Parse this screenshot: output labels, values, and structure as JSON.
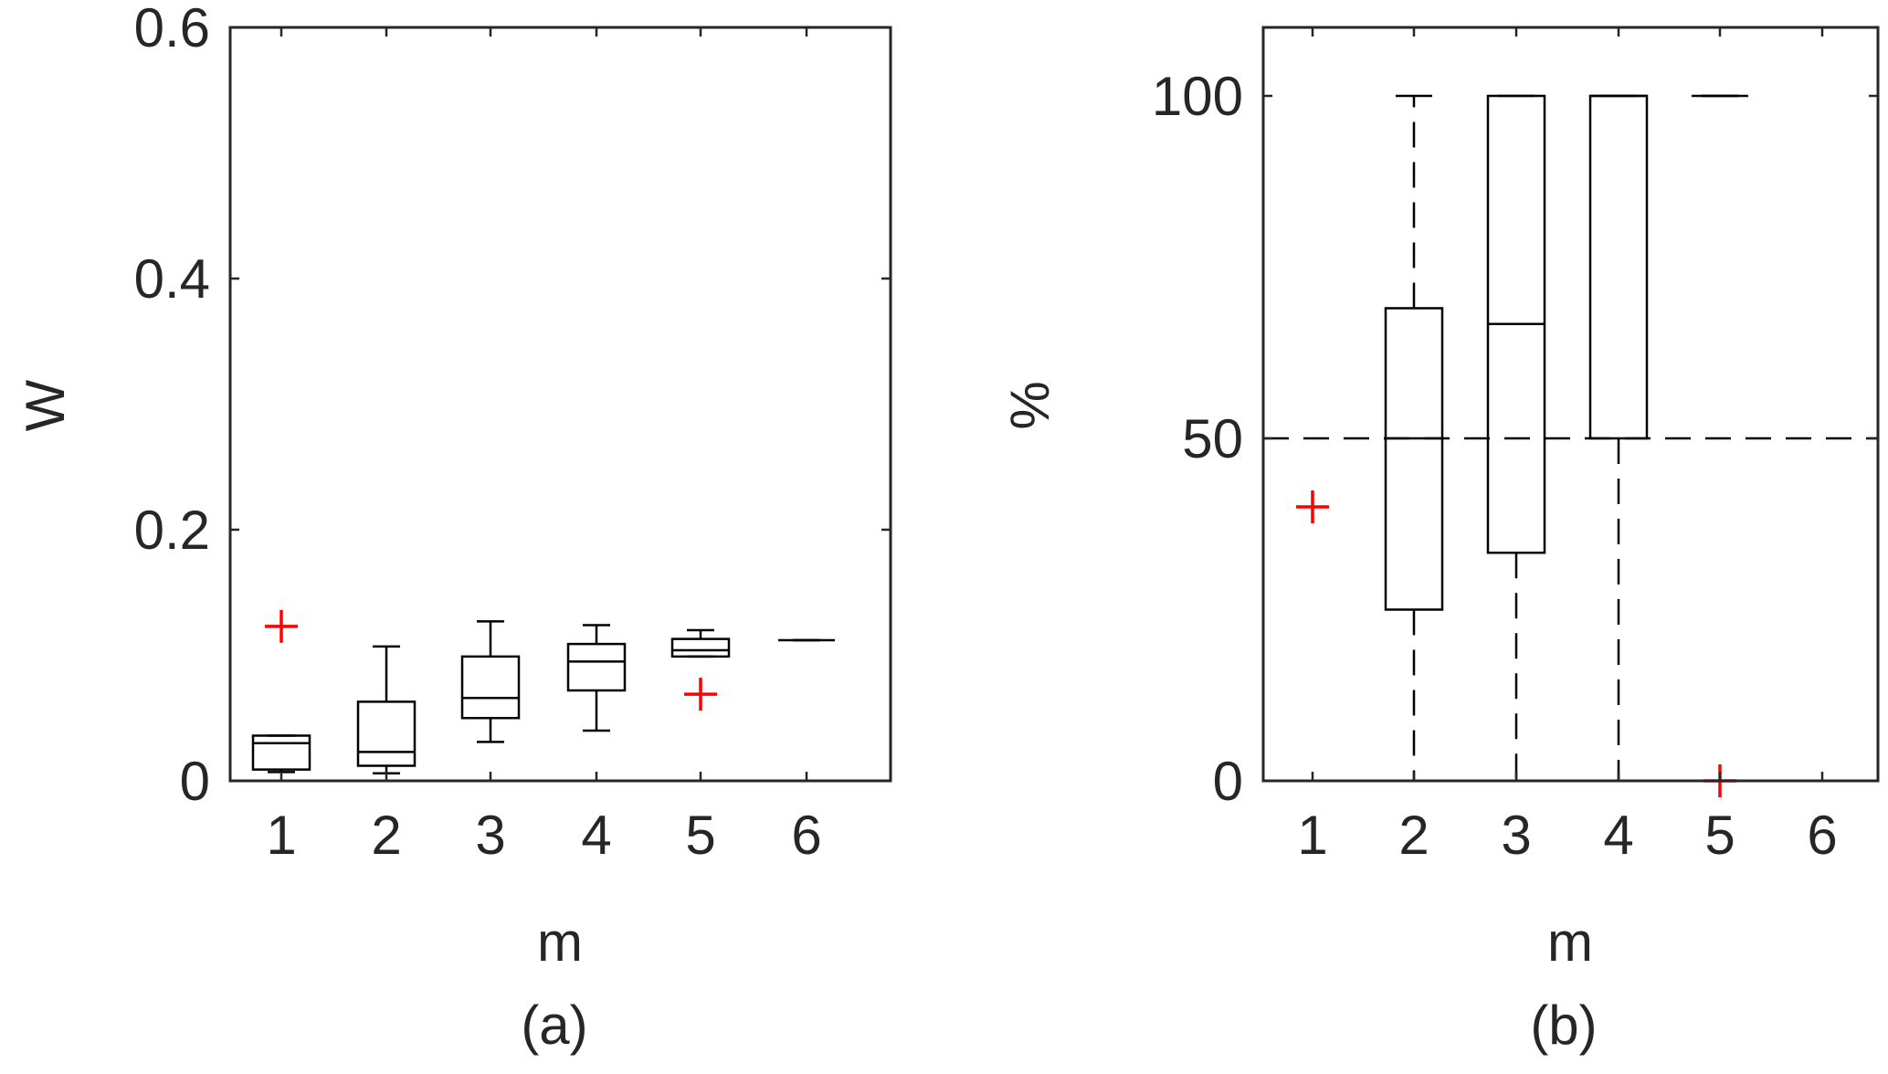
{
  "colors": {
    "box": "#000000",
    "axis": "#262626",
    "outlier": "#ff0000",
    "background": "#ffffff"
  },
  "chart_data": [
    {
      "type": "box",
      "panel_label": "(a)",
      "xlabel": "m",
      "ylabel": "W",
      "categories": [
        "1",
        "2",
        "3",
        "4",
        "5",
        "6"
      ],
      "ylim": [
        0,
        0.6
      ],
      "yticks": [
        0,
        0.2,
        0.4,
        0.6
      ],
      "ytick_labels": [
        "0",
        "0.2",
        "0.4",
        "0.6"
      ],
      "grid": false,
      "boxes": [
        {
          "category": "1",
          "whisker_low": 0.007,
          "q1": 0.009,
          "median": 0.03,
          "q3": 0.036,
          "whisker_high": 0.036,
          "outliers": [
            0.123
          ]
        },
        {
          "category": "2",
          "whisker_low": 0.006,
          "q1": 0.012,
          "median": 0.023,
          "q3": 0.063,
          "whisker_high": 0.107,
          "outliers": []
        },
        {
          "category": "3",
          "whisker_low": 0.031,
          "q1": 0.05,
          "median": 0.066,
          "q3": 0.099,
          "whisker_high": 0.127,
          "outliers": []
        },
        {
          "category": "4",
          "whisker_low": 0.04,
          "q1": 0.072,
          "median": 0.095,
          "q3": 0.109,
          "whisker_high": 0.124,
          "outliers": []
        },
        {
          "category": "5",
          "whisker_low": 0.099,
          "q1": 0.099,
          "median": 0.104,
          "q3": 0.113,
          "whisker_high": 0.12,
          "outliers": [
            0.069
          ]
        },
        {
          "category": "6",
          "whisker_low": 0.112,
          "q1": 0.112,
          "median": 0.112,
          "q3": 0.112,
          "whisker_high": 0.112,
          "outliers": []
        }
      ]
    },
    {
      "type": "box",
      "panel_label": "(b)",
      "xlabel": "m",
      "ylabel": "%",
      "categories": [
        "1",
        "2",
        "3",
        "4",
        "5",
        "6"
      ],
      "ylim": [
        0,
        110
      ],
      "yticks": [
        0,
        50,
        100
      ],
      "ytick_labels": [
        "0",
        "50",
        "100"
      ],
      "grid": false,
      "boxes": [
        {
          "category": "1",
          "whisker_low": 0,
          "q1": 0,
          "median": 0,
          "q3": 0,
          "whisker_high": 0,
          "outliers": [
            40
          ]
        },
        {
          "category": "2",
          "whisker_low": 0,
          "q1": 25,
          "median": 50,
          "q3": 69,
          "whisker_high": 100,
          "outliers": []
        },
        {
          "category": "3",
          "whisker_low": 0,
          "q1": 33.3,
          "median": 66.7,
          "q3": 100,
          "whisker_high": 100,
          "outliers": []
        },
        {
          "category": "4",
          "whisker_low": 0,
          "q1": 50,
          "median": 100,
          "q3": 100,
          "whisker_high": 100,
          "outliers": []
        },
        {
          "category": "5",
          "whisker_low": 100,
          "q1": 100,
          "median": 100,
          "q3": 100,
          "whisker_high": 100,
          "outliers": [
            0
          ]
        },
        {
          "category": "6",
          "whisker_low": 0,
          "q1": 0,
          "median": 0,
          "q3": 0,
          "whisker_high": 0,
          "outliers": []
        }
      ],
      "reference_lines": [
        {
          "y": 50,
          "style": "dashed"
        }
      ]
    }
  ]
}
